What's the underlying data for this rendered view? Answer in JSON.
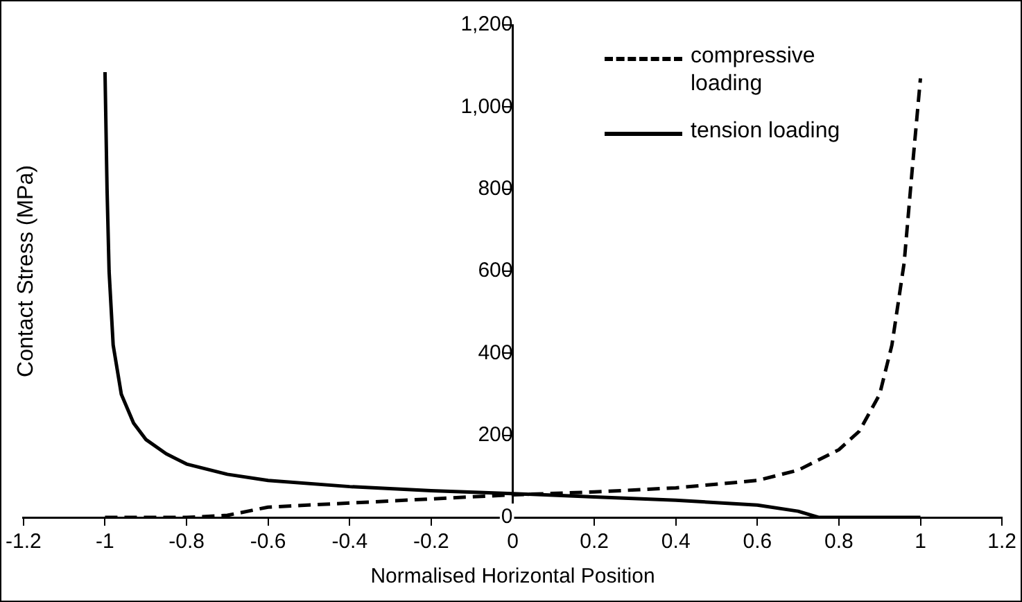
{
  "chart_data": {
    "type": "line",
    "xlabel": "Normalised Horizontal Position",
    "ylabel": "Contact Stress (MPa)",
    "xlim": [
      -1.2,
      1.2
    ],
    "xticks": [
      -1.2,
      -1,
      -0.8,
      -0.6,
      -0.4,
      -0.2,
      0,
      0.2,
      0.4,
      0.6,
      0.8,
      1,
      1.2
    ],
    "ylim": [
      0,
      1200
    ],
    "yticks": [
      {
        "value": 0,
        "label": "0"
      },
      {
        "value": 200,
        "label": "200"
      },
      {
        "value": 400,
        "label": "400"
      },
      {
        "value": 600,
        "label": "600"
      },
      {
        "value": 800,
        "label": "800"
      },
      {
        "value": 1000,
        "label": "1,000"
      },
      {
        "value": 1200,
        "label": "1,200"
      }
    ],
    "grid": false,
    "legend": "top right",
    "marker": "none",
    "series": [
      {
        "name": "compressive loading",
        "color": "#000000",
        "line_style": "dashed",
        "x": [
          -1,
          -0.8,
          -0.7,
          -0.6,
          -0.4,
          -0.2,
          0,
          0.2,
          0.4,
          0.6,
          0.7,
          0.8,
          0.85,
          0.9,
          0.93,
          0.96,
          0.98,
          1
        ],
        "values": [
          0,
          0,
          5,
          25,
          35,
          45,
          55,
          62,
          72,
          90,
          115,
          165,
          210,
          300,
          420,
          620,
          850,
          1070
        ]
      },
      {
        "name": "tension loading",
        "color": "#000000",
        "line_style": "solid",
        "x": [
          -1,
          -0.995,
          -0.99,
          -0.98,
          -0.96,
          -0.93,
          -0.9,
          -0.85,
          -0.8,
          -0.7,
          -0.6,
          -0.4,
          -0.2,
          0,
          0.2,
          0.4,
          0.6,
          0.7,
          0.75,
          1
        ],
        "values": [
          1085,
          800,
          600,
          420,
          300,
          230,
          190,
          155,
          130,
          105,
          90,
          75,
          65,
          58,
          50,
          42,
          30,
          15,
          0,
          0
        ]
      }
    ]
  }
}
